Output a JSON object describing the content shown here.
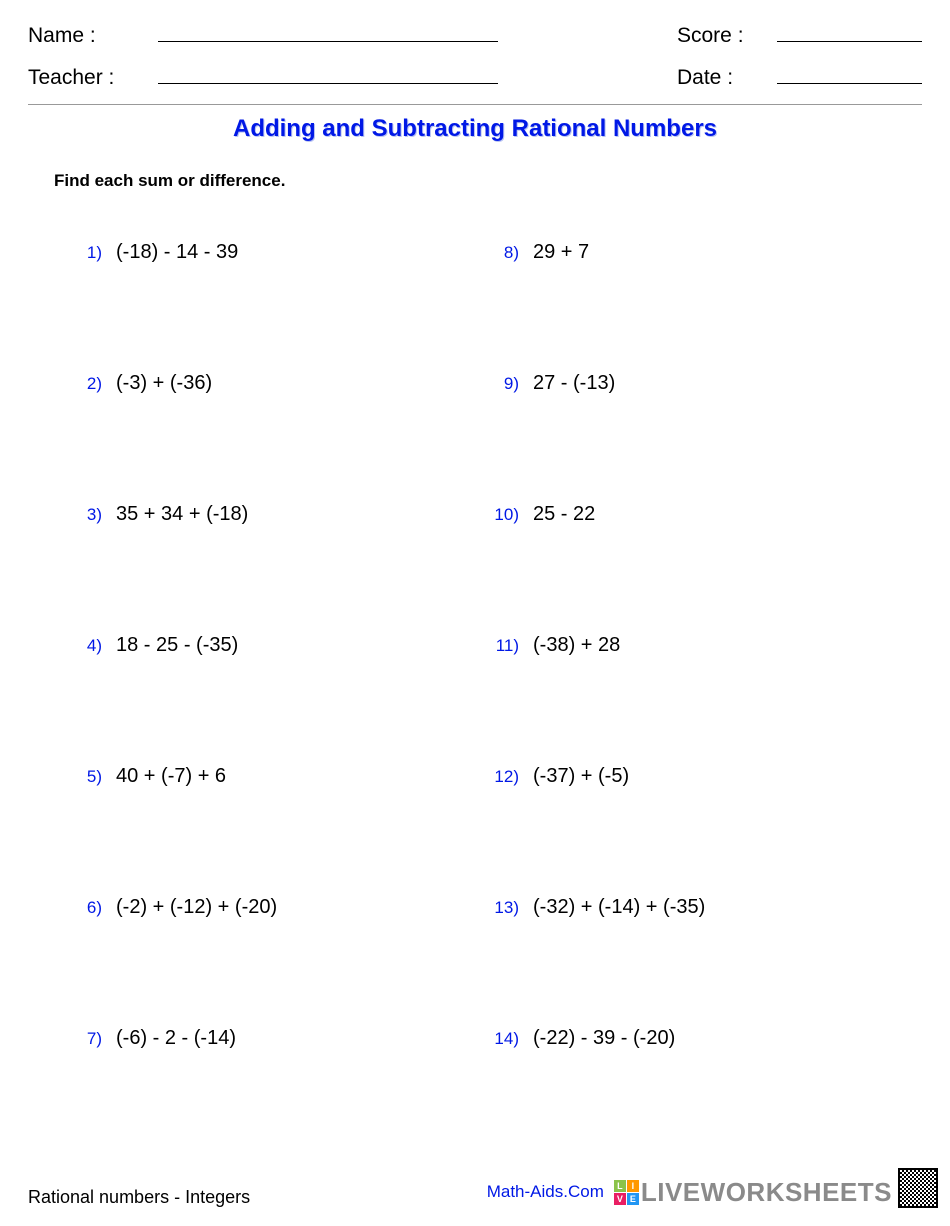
{
  "header": {
    "name_label": "Name :",
    "teacher_label": "Teacher :",
    "score_label": "Score :",
    "date_label": "Date :"
  },
  "title": "Adding and Subtracting Rational Numbers",
  "instructions": "Find each sum or difference.",
  "problems_left": [
    {
      "num": "1)",
      "expr": "(-18) - 14 - 39"
    },
    {
      "num": "2)",
      "expr": "(-3) + (-36)"
    },
    {
      "num": "3)",
      "expr": "35 + 34 + (-18)"
    },
    {
      "num": "4)",
      "expr": "18 - 25 - (-35)"
    },
    {
      "num": "5)",
      "expr": "40 + (-7) + 6"
    },
    {
      "num": "6)",
      "expr": "(-2) + (-12) + (-20)"
    },
    {
      "num": "7)",
      "expr": "(-6) - 2 - (-14)"
    }
  ],
  "problems_right": [
    {
      "num": "8)",
      "expr": "29 + 7"
    },
    {
      "num": "9)",
      "expr": "27 - (-13)"
    },
    {
      "num": "10)",
      "expr": "25 - 22"
    },
    {
      "num": "11)",
      "expr": "(-38) + 28"
    },
    {
      "num": "12)",
      "expr": "(-37) + (-5)"
    },
    {
      "num": "13)",
      "expr": "(-32) + (-14) + (-35)"
    },
    {
      "num": "14)",
      "expr": "(-22) - 39 - (-20)"
    }
  ],
  "footer": {
    "left": "Rational numbers - Integers",
    "mathaids": "Math-Aids.Com",
    "liveworksheets": "LIVEWORKSHEETS"
  },
  "colors": {
    "title_color": "#0018e6",
    "number_color": "#0018e6",
    "text_color": "#000000",
    "background": "#ffffff"
  }
}
